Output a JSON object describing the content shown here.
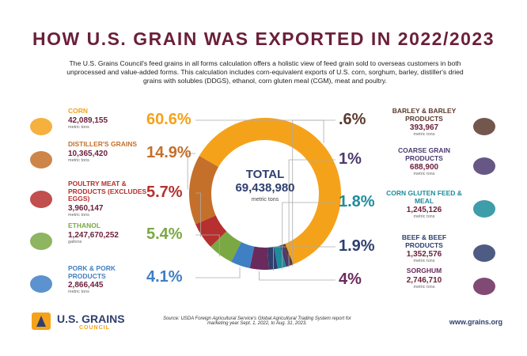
{
  "chart_data": {
    "type": "donut",
    "title": "HOW U.S. GRAIN WAS EXPORTED IN 2022/2023",
    "subtitle": "The U.S. Grains Council's feed grains in all forms calculation offers a holistic view of feed grain sold to overseas customers in both unprocessed and value-added forms. This calculation includes corn-equivalent exports of U.S. corn, sorghum, barley, distiller's dried grains with solubles (DDGS), ethanol, corn gluten meal (CGM), meat and poultry.",
    "total_label": "TOTAL",
    "total": "69,438,980",
    "total_unit": "metric tons",
    "categories": [
      "CORN",
      "BARLEY & BARLEY PRODUCTS",
      "COARSE GRAIN PRODUCTS",
      "CORN GLUTEN FEED & MEAL",
      "BEEF & BEEF PRODUCTS",
      "SORGHUM",
      "PORK & PORK PRODUCTS",
      "ETHANOL",
      "POULTRY MEAT & PRODUCTS (EXCLUDES EGGS)",
      "DISTILLER'S GRAINS"
    ],
    "values": [
      60.6,
      0.6,
      1,
      1.8,
      1.9,
      4,
      4.1,
      5.4,
      5.7,
      14.9
    ],
    "value_labels": [
      "60.6%",
      ".6%",
      "1%",
      "1.8%",
      "1.9%",
      "4%",
      "4.1%",
      "5.4%",
      "5.7%",
      "14.9%"
    ],
    "amounts": [
      "42,089,155",
      "393,967",
      "688,900",
      "1,245,126",
      "1,352,576",
      "2,746,710",
      "2,866,445",
      "1,247,670,252",
      "3,960,147",
      "10,365,420"
    ],
    "units": [
      "metric tons",
      "metric tons",
      "metric tons",
      "metric tons",
      "metric tons",
      "metric tons",
      "metric tons",
      "gallons",
      "metric tons",
      "metric tons"
    ],
    "colors": [
      "#f5a21b",
      "#5b3a2e",
      "#4b3a6e",
      "#1d8c9b",
      "#2f3f6e",
      "#6b2a5c",
      "#3f7fc4",
      "#7aa843",
      "#b5302e",
      "#c4702a"
    ],
    "source": "Source: USDA Foreign Agricultural Service's Global Agricultural Trading System report for marketing year Sept. 1, 2022, to Aug. 31, 2023.",
    "logo_name": "U.S. GRAINS",
    "logo_sub": "COUNCIL",
    "url": "www.grains.org"
  }
}
